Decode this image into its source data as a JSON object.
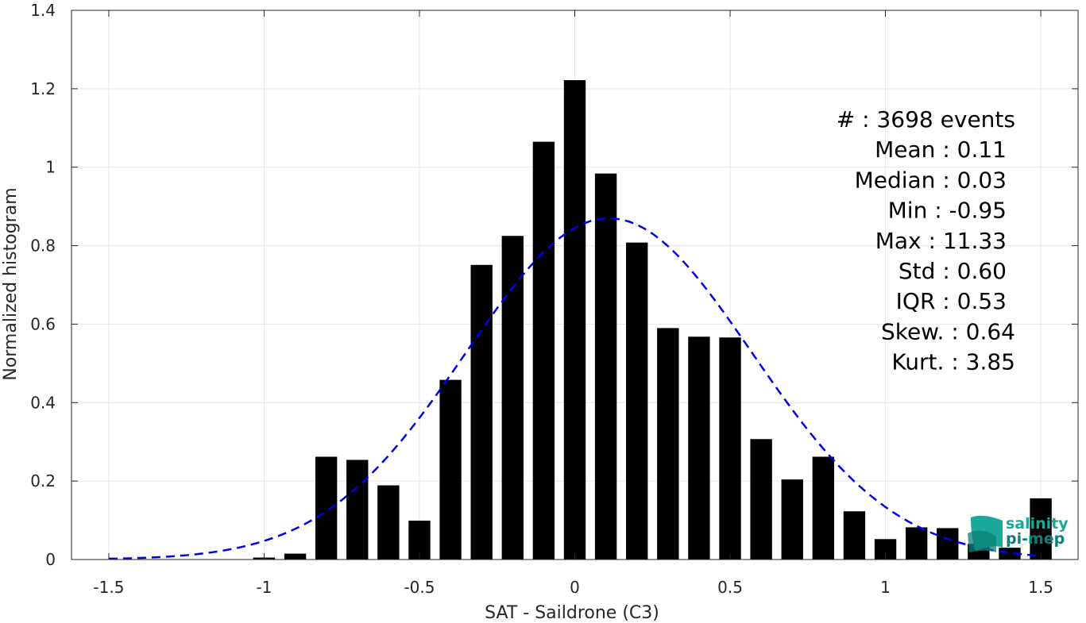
{
  "chart_data": {
    "type": "bar",
    "xlabel": "SAT - Saildrone (C3)",
    "ylabel": "Normalized histogram",
    "xlim": [
      -1.62,
      1.62
    ],
    "ylim": [
      0,
      1.4
    ],
    "xticks": [
      -1.5,
      -1,
      -0.5,
      0,
      0.5,
      1,
      1.5
    ],
    "xtick_labels": [
      "-1.5",
      "-1",
      "-0.5",
      "0",
      "0.5",
      "1",
      "1.5"
    ],
    "yticks": [
      0,
      0.2,
      0.4,
      0.6,
      0.8,
      1,
      1.2,
      1.4
    ],
    "ytick_labels": [
      "0",
      "0.2",
      "0.4",
      "0.6",
      "0.8",
      "1",
      "1.2",
      "1.4"
    ],
    "grid": true,
    "bar_color": "#000000",
    "bins": [
      {
        "x": -1.0,
        "value": 0.005
      },
      {
        "x": -0.9,
        "value": 0.015
      },
      {
        "x": -0.8,
        "value": 0.262
      },
      {
        "x": -0.7,
        "value": 0.254
      },
      {
        "x": -0.6,
        "value": 0.189
      },
      {
        "x": -0.5,
        "value": 0.099
      },
      {
        "x": -0.4,
        "value": 0.458
      },
      {
        "x": -0.3,
        "value": 0.751
      },
      {
        "x": -0.2,
        "value": 0.825
      },
      {
        "x": -0.1,
        "value": 1.065
      },
      {
        "x": 0.0,
        "value": 1.222
      },
      {
        "x": 0.1,
        "value": 0.984
      },
      {
        "x": 0.2,
        "value": 0.808
      },
      {
        "x": 0.3,
        "value": 0.59
      },
      {
        "x": 0.4,
        "value": 0.568
      },
      {
        "x": 0.5,
        "value": 0.566
      },
      {
        "x": 0.6,
        "value": 0.307
      },
      {
        "x": 0.7,
        "value": 0.204
      },
      {
        "x": 0.8,
        "value": 0.262
      },
      {
        "x": 0.9,
        "value": 0.123
      },
      {
        "x": 1.0,
        "value": 0.052
      },
      {
        "x": 1.1,
        "value": 0.082
      },
      {
        "x": 1.2,
        "value": 0.08
      },
      {
        "x": 1.3,
        "value": 0.04
      },
      {
        "x": 1.4,
        "value": 0.03
      },
      {
        "x": 1.5,
        "value": 0.156
      }
    ],
    "fit_curve": {
      "style": "dashed",
      "color": "#0000e6",
      "mean": 0.11,
      "std": 0.46,
      "peak": 0.87,
      "x_range": [
        -1.5,
        1.5
      ]
    },
    "stats": [
      {
        "label": "#",
        "sep": " :",
        "value": "3698 events"
      },
      {
        "label": "Mean",
        "sep": " :",
        "value": "0.11"
      },
      {
        "label": "Median",
        "sep": " :",
        "value": "0.03"
      },
      {
        "label": "Min",
        "sep": " :",
        "value": "-0.95"
      },
      {
        "label": "Max",
        "sep": " :",
        "value": "11.33"
      },
      {
        "label": "Std",
        "sep": " :",
        "value": "0.60"
      },
      {
        "label": "IQR",
        "sep": " :",
        "value": "0.53"
      },
      {
        "label": "Skew.",
        "sep": " :",
        "value": "0.64"
      },
      {
        "label": "Kurt.",
        "sep": " :",
        "value": "3.85"
      }
    ]
  },
  "logo": {
    "line1": "salinity",
    "line2": "pi-mep",
    "color_primary": "#1aa89a",
    "color_secondary": "#0e7f77"
  }
}
